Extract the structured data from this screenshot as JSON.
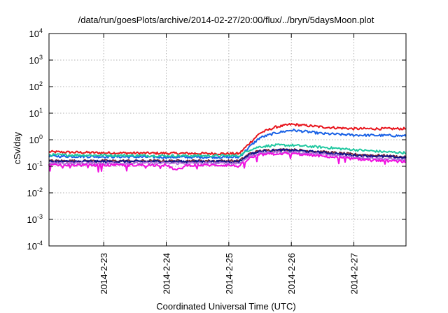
{
  "chart_data": {
    "type": "line",
    "title": "/data/run/goesPlots/archive/2014-02-27/20:00/flux/../bryn/5daysMoon.plot",
    "xlabel": "Coordinated Universal Time (UTC)",
    "ylabel": "cSv/day",
    "yscale": "log",
    "ylim": [
      0.0001,
      10000
    ],
    "xlim": [
      "2014-02-22 03:00",
      "2014-02-27 20:00"
    ],
    "grid": true,
    "legend": "none",
    "x_ticks": [
      "2014-2-23",
      "2014-2-24",
      "2014-2-25",
      "2014-2-26",
      "2014-2-27"
    ],
    "y_ticks": [
      {
        "value": 0.0001,
        "base": "10",
        "exp": "-4"
      },
      {
        "value": 0.001,
        "base": "10",
        "exp": "-3"
      },
      {
        "value": 0.01,
        "base": "10",
        "exp": "-2"
      },
      {
        "value": 0.1,
        "base": "10",
        "exp": "-1"
      },
      {
        "value": 1,
        "base": "10",
        "exp": "0"
      },
      {
        "value": 10,
        "base": "10",
        "exp": "1"
      },
      {
        "value": 100,
        "base": "10",
        "exp": "2"
      },
      {
        "value": 1000,
        "base": "10",
        "exp": "3"
      },
      {
        "value": 10000,
        "base": "10",
        "exp": "4"
      }
    ],
    "series": [
      {
        "color": "#e8141c",
        "points": [
          [
            "2014-02-22 03:00",
            0.35
          ],
          [
            "2014-02-23 00:00",
            0.32
          ],
          [
            "2014-02-24 00:00",
            0.31
          ],
          [
            "2014-02-25 00:00",
            0.3
          ],
          [
            "2014-02-25 04:00",
            0.3
          ],
          [
            "2014-02-25 08:00",
            0.75
          ],
          [
            "2014-02-25 12:00",
            1.8
          ],
          [
            "2014-02-25 18:00",
            3.0
          ],
          [
            "2014-02-26 00:00",
            3.8
          ],
          [
            "2014-02-26 06:00",
            3.4
          ],
          [
            "2014-02-26 12:00",
            3.0
          ],
          [
            "2014-02-27 00:00",
            2.6
          ],
          [
            "2014-02-27 12:00",
            2.6
          ],
          [
            "2014-02-27 20:00",
            2.6
          ]
        ]
      },
      {
        "color": "#1a62e6",
        "points": [
          [
            "2014-02-22 03:00",
            0.24
          ],
          [
            "2014-02-23 00:00",
            0.23
          ],
          [
            "2014-02-24 00:00",
            0.22
          ],
          [
            "2014-02-25 00:00",
            0.22
          ],
          [
            "2014-02-25 04:00",
            0.22
          ],
          [
            "2014-02-25 08:00",
            0.55
          ],
          [
            "2014-02-25 12:00",
            1.2
          ],
          [
            "2014-02-25 18:00",
            1.8
          ],
          [
            "2014-02-26 00:00",
            2.3
          ],
          [
            "2014-02-26 06:00",
            2.0
          ],
          [
            "2014-02-26 12:00",
            1.7
          ],
          [
            "2014-02-27 00:00",
            1.5
          ],
          [
            "2014-02-27 12:00",
            1.45
          ],
          [
            "2014-02-27 20:00",
            1.4
          ]
        ]
      },
      {
        "color": "#20c8a0",
        "points": [
          [
            "2014-02-22 03:00",
            0.27
          ],
          [
            "2014-02-23 00:00",
            0.26
          ],
          [
            "2014-02-24 00:00",
            0.25
          ],
          [
            "2014-02-25 00:00",
            0.25
          ],
          [
            "2014-02-25 04:00",
            0.25
          ],
          [
            "2014-02-25 08:00",
            0.42
          ],
          [
            "2014-02-25 12:00",
            0.55
          ],
          [
            "2014-02-25 18:00",
            0.62
          ],
          [
            "2014-02-26 00:00",
            0.62
          ],
          [
            "2014-02-26 12:00",
            0.52
          ],
          [
            "2014-02-27 00:00",
            0.42
          ],
          [
            "2014-02-27 12:00",
            0.35
          ],
          [
            "2014-02-27 20:00",
            0.32
          ]
        ]
      },
      {
        "color": "#7a2a3a",
        "points": [
          [
            "2014-02-22 03:00",
            0.16
          ],
          [
            "2014-02-23 00:00",
            0.16
          ],
          [
            "2014-02-24 00:00",
            0.16
          ],
          [
            "2014-02-25 00:00",
            0.16
          ],
          [
            "2014-02-25 04:00",
            0.16
          ],
          [
            "2014-02-25 08:00",
            0.3
          ],
          [
            "2014-02-25 12:00",
            0.38
          ],
          [
            "2014-02-25 18:00",
            0.42
          ],
          [
            "2014-02-26 00:00",
            0.42
          ],
          [
            "2014-02-26 12:00",
            0.35
          ],
          [
            "2014-02-27 00:00",
            0.28
          ],
          [
            "2014-02-27 12:00",
            0.25
          ],
          [
            "2014-02-27 20:00",
            0.22
          ]
        ]
      },
      {
        "color": "#10128a",
        "points": [
          [
            "2014-02-22 03:00",
            0.15
          ],
          [
            "2014-02-23 00:00",
            0.15
          ],
          [
            "2014-02-24 00:00",
            0.15
          ],
          [
            "2014-02-25 00:00",
            0.15
          ],
          [
            "2014-02-25 04:00",
            0.15
          ],
          [
            "2014-02-25 08:00",
            0.28
          ],
          [
            "2014-02-25 12:00",
            0.36
          ],
          [
            "2014-02-25 18:00",
            0.4
          ],
          [
            "2014-02-26 00:00",
            0.4
          ],
          [
            "2014-02-26 12:00",
            0.33
          ],
          [
            "2014-02-27 00:00",
            0.26
          ],
          [
            "2014-02-27 12:00",
            0.23
          ],
          [
            "2014-02-27 20:00",
            0.21
          ]
        ]
      },
      {
        "color": "#b070d8",
        "points": [
          [
            "2014-02-22 03:00",
            0.13
          ],
          [
            "2014-02-23 00:00",
            0.13
          ],
          [
            "2014-02-24 00:00",
            0.13
          ],
          [
            "2014-02-25 00:00",
            0.13
          ],
          [
            "2014-02-25 04:00",
            0.13
          ],
          [
            "2014-02-25 08:00",
            0.24
          ],
          [
            "2014-02-25 12:00",
            0.31
          ],
          [
            "2014-02-25 18:00",
            0.34
          ],
          [
            "2014-02-26 00:00",
            0.34
          ],
          [
            "2014-02-26 12:00",
            0.28
          ],
          [
            "2014-02-27 00:00",
            0.22
          ],
          [
            "2014-02-27 12:00",
            0.19
          ],
          [
            "2014-02-27 20:00",
            0.17
          ]
        ]
      },
      {
        "color": "#f010e0",
        "points": [
          [
            "2014-02-22 03:00",
            0.11
          ],
          [
            "2014-02-23 00:00",
            0.11
          ],
          [
            "2014-02-24 00:00",
            0.11
          ],
          [
            "2014-02-24 04:00",
            0.07
          ],
          [
            "2014-02-24 08:00",
            0.11
          ],
          [
            "2014-02-25 00:00",
            0.11
          ],
          [
            "2014-02-25 04:00",
            0.1
          ],
          [
            "2014-02-25 08:00",
            0.2
          ],
          [
            "2014-02-25 12:00",
            0.27
          ],
          [
            "2014-02-25 18:00",
            0.3
          ],
          [
            "2014-02-26 00:00",
            0.3
          ],
          [
            "2014-02-26 12:00",
            0.24
          ],
          [
            "2014-02-27 00:00",
            0.19
          ],
          [
            "2014-02-27 12:00",
            0.16
          ],
          [
            "2014-02-27 20:00",
            0.15
          ]
        ]
      }
    ]
  }
}
